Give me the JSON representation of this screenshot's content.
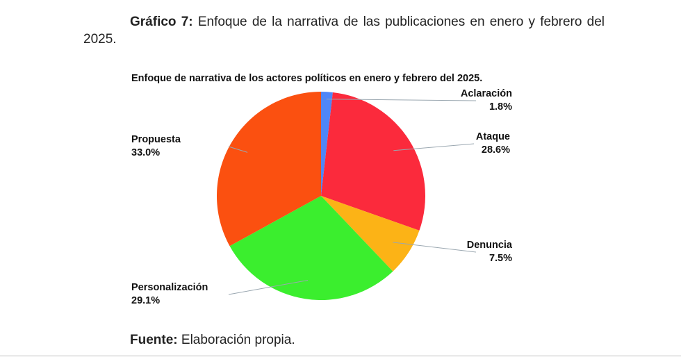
{
  "figure_caption": {
    "label": "Gráfico 7:",
    "text": "Enfoque de la narrativa de las publicaciones en enero y febrero del 2025."
  },
  "source": {
    "label": "Fuente:",
    "text": "Elaboración propia."
  },
  "chart_data": {
    "type": "pie",
    "title": "Enfoque de narrativa de los actores políticos en enero y febrero del 2025.",
    "start_angle_deg": 0,
    "direction": "clockwise",
    "legend": "none",
    "slices": [
      {
        "label": "Aclaración",
        "value": 1.8,
        "value_label": "1.8%",
        "color": "#4f86f7"
      },
      {
        "label": "Ataque",
        "value": 28.6,
        "value_label": "28.6%",
        "color": "#fb2a3c"
      },
      {
        "label": "Denuncia",
        "value": 7.5,
        "value_label": "7.5%",
        "color": "#fcb316"
      },
      {
        "label": "Personalización",
        "value": 29.1,
        "value_label": "29.1%",
        "color": "#3bee2e"
      },
      {
        "label": "Propuesta",
        "value": 33.0,
        "value_label": "33.0%",
        "color": "#fb5010"
      }
    ]
  }
}
